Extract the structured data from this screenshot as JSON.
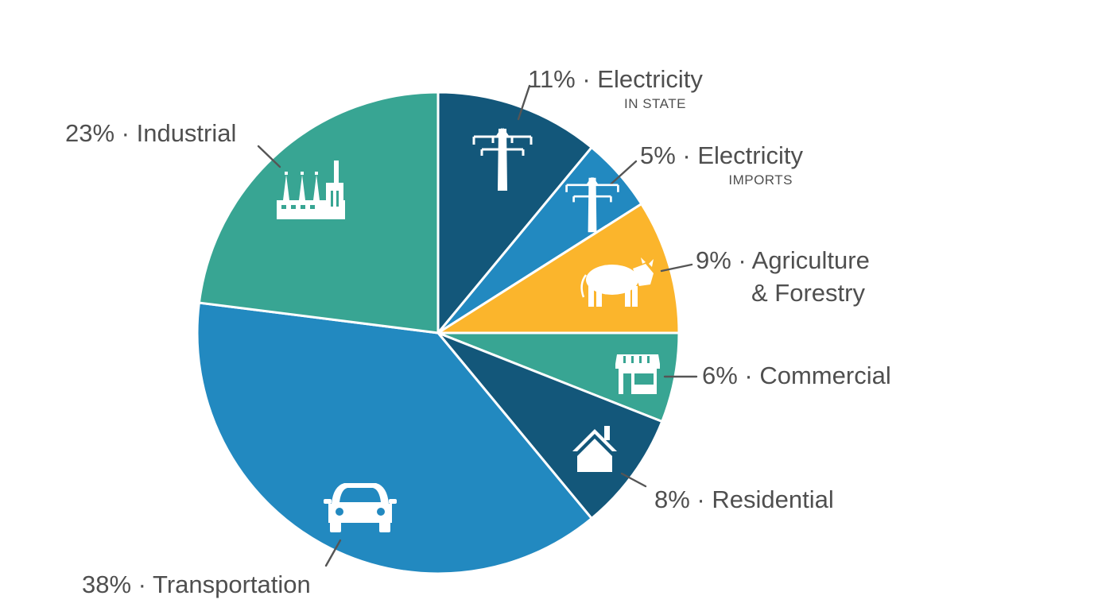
{
  "chart_data": {
    "type": "pie",
    "slices": [
      {
        "key": "electricity_in_state",
        "value": 11,
        "label": "11% · Electricity",
        "sublabel": "IN STATE",
        "color": "#13577a",
        "icon": "power-tower-icon"
      },
      {
        "key": "electricity_imports",
        "value": 5,
        "label": "5% · Electricity",
        "sublabel": "IMPORTS",
        "color": "#2289c0",
        "icon": "power-tower-icon"
      },
      {
        "key": "agriculture_forestry",
        "value": 9,
        "label": "9% · Agriculture",
        "label_line2": "& Forestry",
        "color": "#fbb52c",
        "icon": "cow-icon"
      },
      {
        "key": "commercial",
        "value": 6,
        "label": "6% · Commercial",
        "color": "#38a593",
        "icon": "storefront-icon"
      },
      {
        "key": "residential",
        "value": 8,
        "label": "8% · Residential",
        "color": "#13577a",
        "icon": "house-icon"
      },
      {
        "key": "transportation",
        "value": 38,
        "label": "38% · Transportation",
        "color": "#2289c0",
        "icon": "car-icon"
      },
      {
        "key": "industrial",
        "value": 23,
        "label": "23% · Industrial",
        "color": "#38a593",
        "icon": "factory-icon"
      }
    ]
  }
}
